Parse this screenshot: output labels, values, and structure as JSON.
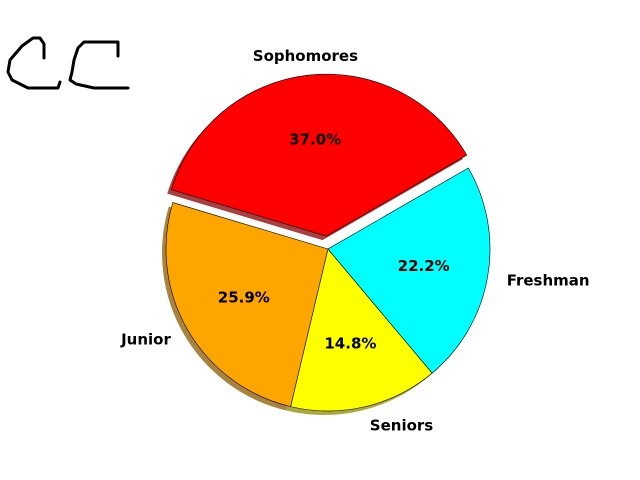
{
  "chart_data": {
    "type": "pie",
    "title": "",
    "categories": [
      "Sophomores",
      "Junior",
      "Seniors",
      "Freshman"
    ],
    "values": [
      37.0,
      25.9,
      14.8,
      22.2
    ],
    "value_labels": [
      "37.0%",
      "25.9%",
      "14.8%",
      "22.2%"
    ],
    "colors": [
      "#ff0000",
      "#ffa500",
      "#ffff00",
      "#00ffff"
    ],
    "explode": [
      0.08,
      0,
      0,
      0
    ],
    "shadow": true,
    "legend": "none"
  },
  "handwriting": {
    "text": "CC",
    "stroke_color": "#000000"
  }
}
